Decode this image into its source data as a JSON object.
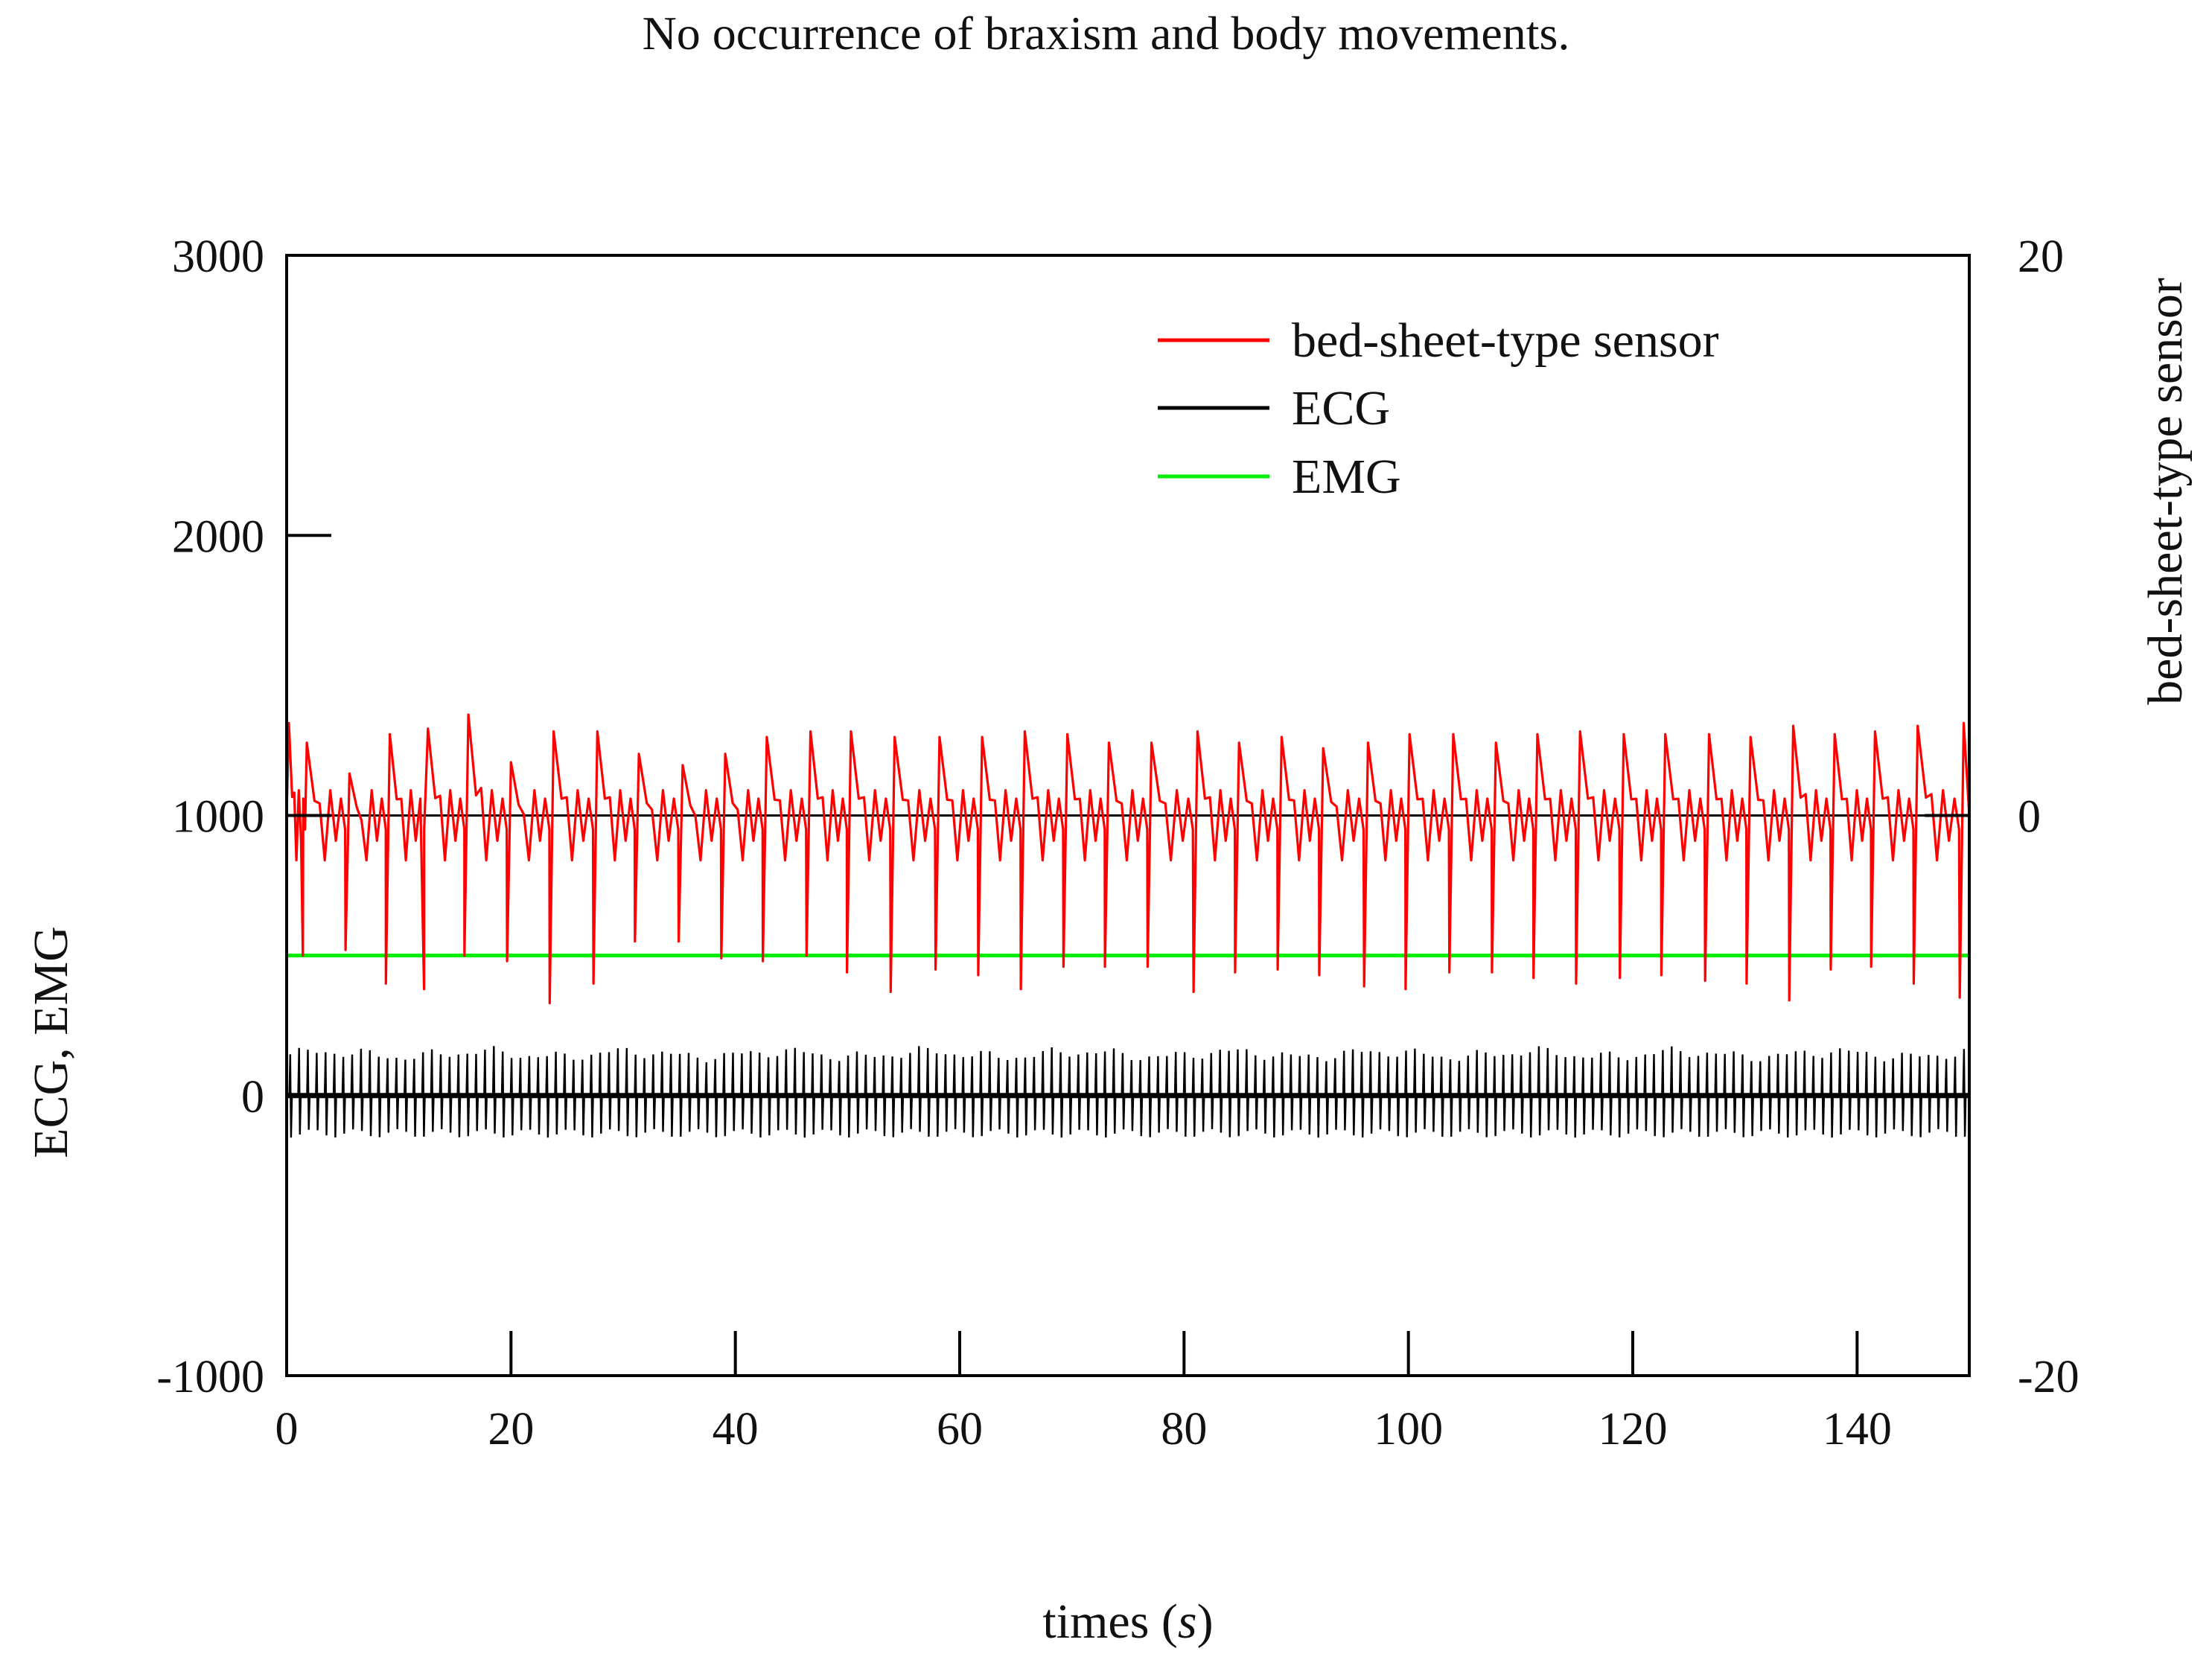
{
  "chart_data": {
    "type": "line",
    "title": "No occurrence of braxism and body movements.",
    "xlabel": "times",
    "xlabel_unit": "s",
    "ylabel_left": "ECG, EMG",
    "ylabel_right": "bed-sheet-type sensor",
    "xlim": [
      0,
      150
    ],
    "ylim_left": [
      -1000,
      3000
    ],
    "ylim_right": [
      -20,
      20
    ],
    "x_ticks": [
      "0",
      "20",
      "40",
      "60",
      "80",
      "100",
      "120",
      "140"
    ],
    "y_left_ticks": [
      "-1000",
      "0",
      "1000",
      "2000",
      "3000"
    ],
    "y_right_ticks": [
      "-20",
      "0",
      "20"
    ],
    "legend_position": "top-right",
    "series": [
      {
        "name": "bed-sheet-type sensor",
        "axis": "right",
        "color": "#ff0000",
        "baseline": 0,
        "beat_times": [
          0.2,
          1.8,
          5.6,
          9.2,
          12.6,
          16.2,
          20.0,
          23.8,
          27.7,
          31.4,
          35.3,
          39.1,
          42.8,
          46.7,
          50.3,
          54.2,
          58.2,
          62.0,
          65.8,
          69.6,
          73.3,
          77.1,
          81.2,
          84.9,
          88.7,
          92.4,
          96.4,
          100.1,
          104.0,
          107.8,
          111.5,
          115.3,
          119.2,
          122.9,
          126.8,
          130.5,
          134.3,
          138.0,
          141.6,
          145.4,
          149.5
        ],
        "peak_values": [
          3.3,
          2.6,
          1.5,
          2.9,
          3.1,
          3.6,
          1.9,
          3.0,
          3.0,
          2.2,
          1.8,
          2.2,
          2.8,
          3.0,
          3.0,
          2.8,
          2.8,
          2.8,
          3.0,
          2.9,
          2.6,
          2.6,
          3.0,
          2.6,
          2.8,
          2.4,
          2.6,
          2.9,
          2.9,
          2.6,
          2.9,
          3.0,
          2.9,
          2.9,
          2.9,
          2.8,
          3.2,
          2.9,
          3.0,
          3.2,
          3.3
        ],
        "trough_values": [
          -3.5,
          -5.0,
          -4.8,
          -6.0,
          -6.2,
          -5.0,
          -5.2,
          -6.7,
          -6.0,
          -4.5,
          -4.5,
          -5.1,
          -5.2,
          -5.0,
          -5.6,
          -6.3,
          -5.5,
          -5.7,
          -6.2,
          -5.4,
          -5.4,
          -5.4,
          -6.3,
          -5.6,
          -5.5,
          -5.7,
          -6.1,
          -6.2,
          -5.6,
          -5.6,
          -5.8,
          -6.0,
          -5.8,
          -5.7,
          -5.9,
          -6.0,
          -6.6,
          -5.5,
          -5.4,
          -6.0,
          -6.5
        ]
      },
      {
        "name": "ECG",
        "axis": "left",
        "color": "#000000",
        "baseline": 0,
        "r_peak": 160,
        "s_trough": -150,
        "beat_count": 190
      },
      {
        "name": "EMG",
        "axis": "left",
        "color": "#00ee00",
        "constant_value": 500
      }
    ],
    "reference_line": {
      "axis": "right",
      "value": 0,
      "color": "#000000"
    }
  }
}
